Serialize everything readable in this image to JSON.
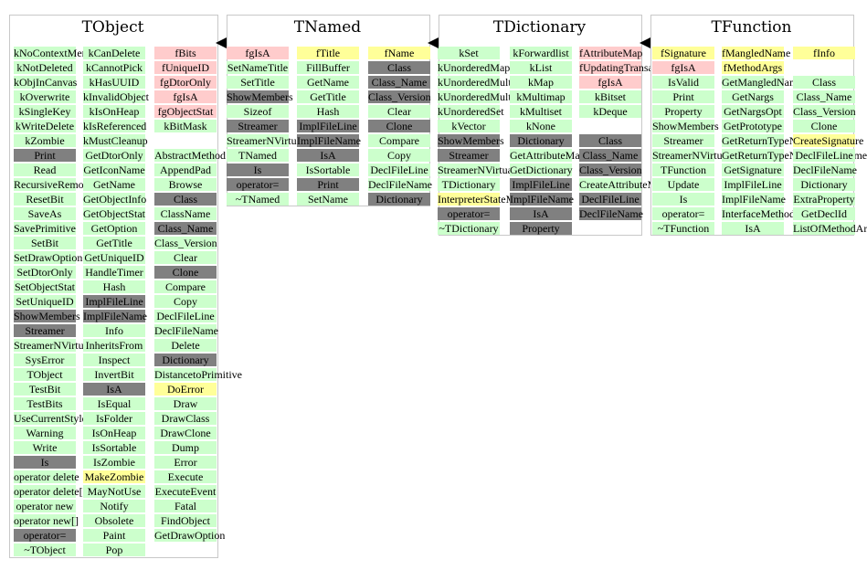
{
  "colors": {
    "method": "#ccffcc",
    "inherited": "#808080",
    "field": "#ffcccc",
    "virtual": "#ffff99"
  },
  "classes": [
    {
      "name": "TObject",
      "columns": [
        [
          [
            "kNoContextMenu",
            "method"
          ],
          [
            "kNotDeleted",
            "method"
          ],
          [
            "kObjInCanvas",
            "method"
          ],
          [
            "kOverwrite",
            "method"
          ],
          [
            "kSingleKey",
            "method"
          ],
          [
            "kWriteDelete",
            "method"
          ],
          [
            "kZombie",
            "method"
          ],
          [
            "Print",
            "inherited"
          ],
          [
            "Read",
            "method"
          ],
          [
            "RecursiveRemove",
            "method"
          ],
          [
            "ResetBit",
            "method"
          ],
          [
            "SaveAs",
            "method"
          ],
          [
            "SavePrimitive",
            "method"
          ],
          [
            "SetBit",
            "method"
          ],
          [
            "SetDrawOption",
            "method"
          ],
          [
            "SetDtorOnly",
            "method"
          ],
          [
            "SetObjectStat",
            "method"
          ],
          [
            "SetUniqueID",
            "method"
          ],
          [
            "ShowMembers",
            "inherited"
          ],
          [
            "Streamer",
            "inherited"
          ],
          [
            "StreamerNVirtual",
            "method"
          ],
          [
            "SysError",
            "method"
          ],
          [
            "TObject",
            "method"
          ],
          [
            "TestBit",
            "method"
          ],
          [
            "TestBits",
            "method"
          ],
          [
            "UseCurrentStyle",
            "method"
          ],
          [
            "Warning",
            "method"
          ],
          [
            "Write",
            "method"
          ],
          [
            "Is",
            "inherited"
          ],
          [
            "operator delete",
            "method"
          ],
          [
            "operator delete[]",
            "method"
          ],
          [
            "operator new",
            "method"
          ],
          [
            "operator new[]",
            "method"
          ],
          [
            "operator=",
            "inherited"
          ],
          [
            "~TObject",
            "method"
          ]
        ],
        [
          [
            "kCanDelete",
            "method"
          ],
          [
            "kCannotPick",
            "method"
          ],
          [
            "kHasUUID",
            "method"
          ],
          [
            "kInvalidObject",
            "method"
          ],
          [
            "kIsOnHeap",
            "method"
          ],
          [
            "kIsReferenced",
            "method"
          ],
          [
            "kMustCleanup",
            "method"
          ],
          [
            "GetDtorOnly",
            "method"
          ],
          [
            "GetIconName",
            "method"
          ],
          [
            "GetName",
            "method"
          ],
          [
            "GetObjectInfo",
            "method"
          ],
          [
            "GetObjectStat",
            "method"
          ],
          [
            "GetOption",
            "method"
          ],
          [
            "GetTitle",
            "method"
          ],
          [
            "GetUniqueID",
            "method"
          ],
          [
            "HandleTimer",
            "method"
          ],
          [
            "Hash",
            "method"
          ],
          [
            "ImplFileLine",
            "inherited"
          ],
          [
            "ImplFileName",
            "inherited"
          ],
          [
            "Info",
            "method"
          ],
          [
            "InheritsFrom",
            "method"
          ],
          [
            "Inspect",
            "method"
          ],
          [
            "InvertBit",
            "method"
          ],
          [
            "IsA",
            "inherited"
          ],
          [
            "IsEqual",
            "method"
          ],
          [
            "IsFolder",
            "method"
          ],
          [
            "IsOnHeap",
            "method"
          ],
          [
            "IsSortable",
            "method"
          ],
          [
            "IsZombie",
            "method"
          ],
          [
            "MakeZombie",
            "virtual"
          ],
          [
            "MayNotUse",
            "method"
          ],
          [
            "Notify",
            "method"
          ],
          [
            "Obsolete",
            "method"
          ],
          [
            "Paint",
            "method"
          ],
          [
            "Pop",
            "method"
          ]
        ],
        [
          [
            "fBits",
            "field"
          ],
          [
            "fUniqueID",
            "field"
          ],
          [
            "fgDtorOnly",
            "field"
          ],
          [
            "fgIsA",
            "field"
          ],
          [
            "fgObjectStat",
            "field"
          ],
          [
            "kBitMask",
            "method"
          ],
          [
            "",
            "none"
          ],
          [
            "AbstractMethod",
            "method"
          ],
          [
            "AppendPad",
            "method"
          ],
          [
            "Browse",
            "method"
          ],
          [
            "Class",
            "inherited"
          ],
          [
            "ClassName",
            "method"
          ],
          [
            "Class_Name",
            "inherited"
          ],
          [
            "Class_Version",
            "method"
          ],
          [
            "Clear",
            "method"
          ],
          [
            "Clone",
            "inherited"
          ],
          [
            "Compare",
            "method"
          ],
          [
            "Copy",
            "method"
          ],
          [
            "DeclFileLine",
            "method"
          ],
          [
            "DeclFileName",
            "method"
          ],
          [
            "Delete",
            "method"
          ],
          [
            "Dictionary",
            "inherited"
          ],
          [
            "DistancetoPrimitive",
            "method"
          ],
          [
            "DoError",
            "virtual"
          ],
          [
            "Draw",
            "method"
          ],
          [
            "DrawClass",
            "method"
          ],
          [
            "DrawClone",
            "method"
          ],
          [
            "Dump",
            "method"
          ],
          [
            "Error",
            "method"
          ],
          [
            "Execute",
            "method"
          ],
          [
            "ExecuteEvent",
            "method"
          ],
          [
            "Fatal",
            "method"
          ],
          [
            "FindObject",
            "method"
          ],
          [
            "GetDrawOption",
            "method"
          ]
        ]
      ]
    },
    {
      "name": "TNamed",
      "columns": [
        [
          [
            "fgIsA",
            "field"
          ],
          [
            "SetNameTitle",
            "method"
          ],
          [
            "SetTitle",
            "method"
          ],
          [
            "ShowMembers",
            "inherited"
          ],
          [
            "Sizeof",
            "method"
          ],
          [
            "Streamer",
            "inherited"
          ],
          [
            "StreamerNVirtual",
            "method"
          ],
          [
            "TNamed",
            "method"
          ],
          [
            "Is",
            "inherited"
          ],
          [
            "operator=",
            "inherited"
          ],
          [
            "~TNamed",
            "method"
          ]
        ],
        [
          [
            "fTitle",
            "virtual"
          ],
          [
            "FillBuffer",
            "method"
          ],
          [
            "GetName",
            "method"
          ],
          [
            "GetTitle",
            "method"
          ],
          [
            "Hash",
            "method"
          ],
          [
            "ImplFileLine",
            "inherited"
          ],
          [
            "ImplFileName",
            "inherited"
          ],
          [
            "IsA",
            "inherited"
          ],
          [
            "IsSortable",
            "method"
          ],
          [
            "Print",
            "inherited"
          ],
          [
            "SetName",
            "method"
          ]
        ],
        [
          [
            "fName",
            "virtual"
          ],
          [
            "Class",
            "inherited"
          ],
          [
            "Class_Name",
            "inherited"
          ],
          [
            "Class_Version",
            "inherited"
          ],
          [
            "Clear",
            "method"
          ],
          [
            "Clone",
            "inherited"
          ],
          [
            "Compare",
            "method"
          ],
          [
            "Copy",
            "method"
          ],
          [
            "DeclFileLine",
            "method"
          ],
          [
            "DeclFileName",
            "method"
          ],
          [
            "Dictionary",
            "inherited"
          ]
        ]
      ]
    },
    {
      "name": "TDictionary",
      "columns": [
        [
          [
            "kSet",
            "method"
          ],
          [
            "kUnorderedMap",
            "method"
          ],
          [
            "kUnorderedMultimap",
            "method"
          ],
          [
            "kUnorderedMultiset",
            "method"
          ],
          [
            "kUnorderedSet",
            "method"
          ],
          [
            "kVector",
            "method"
          ],
          [
            "ShowMembers",
            "inherited"
          ],
          [
            "Streamer",
            "inherited"
          ],
          [
            "StreamerNVirtual",
            "method"
          ],
          [
            "TDictionary",
            "method"
          ],
          [
            "InterpreterStateMutex",
            "virtual"
          ],
          [
            "operator=",
            "inherited"
          ],
          [
            "~TDictionary",
            "method"
          ]
        ],
        [
          [
            "kForwardlist",
            "method"
          ],
          [
            "kList",
            "method"
          ],
          [
            "kMap",
            "method"
          ],
          [
            "kMultimap",
            "method"
          ],
          [
            "kMultiset",
            "method"
          ],
          [
            "kNone",
            "method"
          ],
          [
            "Dictionary",
            "inherited"
          ],
          [
            "GetAttributeMap",
            "method"
          ],
          [
            "GetDictionary",
            "method"
          ],
          [
            "ImplFileLine",
            "inherited"
          ],
          [
            "ImplFileName",
            "inherited"
          ],
          [
            "IsA",
            "inherited"
          ],
          [
            "Property",
            "inherited"
          ]
        ],
        [
          [
            "fAttributeMap",
            "field"
          ],
          [
            "fUpdatingTransactionCount",
            "field"
          ],
          [
            "fgIsA",
            "field"
          ],
          [
            "kBitset",
            "method"
          ],
          [
            "kDeque",
            "method"
          ],
          [
            "",
            "none"
          ],
          [
            "Class",
            "inherited"
          ],
          [
            "Class_Name",
            "inherited"
          ],
          [
            "Class_Version",
            "inherited"
          ],
          [
            "CreateAttributeMap",
            "method"
          ],
          [
            "DeclFileLine",
            "inherited"
          ],
          [
            "DeclFileName",
            "inherited"
          ]
        ]
      ]
    },
    {
      "name": "TFunction",
      "columns": [
        [
          [
            "fSignature",
            "virtual"
          ],
          [
            "fgIsA",
            "field"
          ],
          [
            "IsValid",
            "method"
          ],
          [
            "Print",
            "method"
          ],
          [
            "Property",
            "method"
          ],
          [
            "ShowMembers",
            "method"
          ],
          [
            "Streamer",
            "method"
          ],
          [
            "StreamerNVirtual",
            "method"
          ],
          [
            "TFunction",
            "method"
          ],
          [
            "Update",
            "method"
          ],
          [
            "Is",
            "method"
          ],
          [
            "operator=",
            "method"
          ],
          [
            "~TFunction",
            "method"
          ]
        ],
        [
          [
            "fMangledName",
            "virtual"
          ],
          [
            "fMethodArgs",
            "virtual"
          ],
          [
            "GetMangledName",
            "method"
          ],
          [
            "GetNargs",
            "method"
          ],
          [
            "GetNargsOpt",
            "method"
          ],
          [
            "GetPrototype",
            "method"
          ],
          [
            "GetReturnTypeName",
            "method"
          ],
          [
            "GetReturnTypeNormalizedName",
            "method"
          ],
          [
            "GetSignature",
            "method"
          ],
          [
            "ImplFileLine",
            "method"
          ],
          [
            "ImplFileName",
            "method"
          ],
          [
            "InterfaceMethod",
            "method"
          ],
          [
            "IsA",
            "method"
          ]
        ],
        [
          [
            "fInfo",
            "virtual"
          ],
          [
            "",
            "none"
          ],
          [
            "Class",
            "method"
          ],
          [
            "Class_Name",
            "method"
          ],
          [
            "Class_Version",
            "method"
          ],
          [
            "Clone",
            "method"
          ],
          [
            "CreateSignature",
            "virtual"
          ],
          [
            "DeclFileLine",
            "method"
          ],
          [
            "DeclFileName",
            "method"
          ],
          [
            "Dictionary",
            "method"
          ],
          [
            "ExtraProperty",
            "method"
          ],
          [
            "GetDeclId",
            "method"
          ],
          [
            "ListOfMethodArgs",
            "method"
          ]
        ]
      ]
    }
  ]
}
